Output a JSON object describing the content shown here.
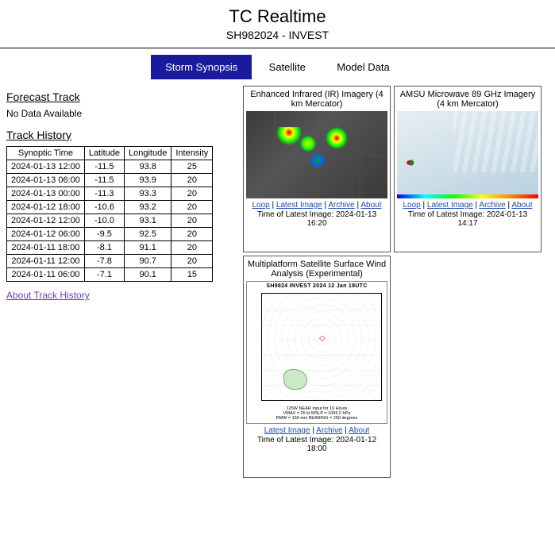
{
  "header": {
    "title": "TC Realtime",
    "subtitle": "SH982024 - INVEST"
  },
  "tabs": [
    {
      "label": "Storm Synopsis",
      "active": true
    },
    {
      "label": "Satellite",
      "active": false
    },
    {
      "label": "Model Data",
      "active": false
    }
  ],
  "forecast": {
    "heading": "Forecast Track",
    "nodata": "No Data Available"
  },
  "trackHistory": {
    "heading": "Track History",
    "columns": [
      "Synoptic Time",
      "Latitude",
      "Longitude",
      "Intensity"
    ],
    "rows": [
      [
        "2024-01-13 12:00",
        "-11.5",
        "93.8",
        "25"
      ],
      [
        "2024-01-13 06:00",
        "-11.5",
        "93.9",
        "20"
      ],
      [
        "2024-01-13 00:00",
        "-11.3",
        "93.3",
        "20"
      ],
      [
        "2024-01-12 18:00",
        "-10.6",
        "93.2",
        "20"
      ],
      [
        "2024-01-12 12:00",
        "-10.0",
        "93.1",
        "20"
      ],
      [
        "2024-01-12 06:00",
        "-9.5",
        "92.5",
        "20"
      ],
      [
        "2024-01-11 18:00",
        "-8.1",
        "91.1",
        "20"
      ],
      [
        "2024-01-11 12:00",
        "-7.8",
        "90.7",
        "20"
      ],
      [
        "2024-01-11 06:00",
        "-7.1",
        "90.1",
        "15"
      ]
    ],
    "aboutLink": "About Track History"
  },
  "panels": {
    "ir": {
      "title": "Enhanced Infrared (IR) Imagery (4 km Mercator)",
      "links": {
        "loop": "Loop",
        "latest": "Latest Image",
        "archive": "Archive",
        "about": "About"
      },
      "timestampLabel": "Time of Latest Image: 2024-01-13 16:20"
    },
    "amsu": {
      "title": "AMSU Microwave 89 GHz Imagery (4 km Mercator)",
      "links": {
        "loop": "Loop",
        "latest": "Latest Image",
        "archive": "Archive",
        "about": "About"
      },
      "timestampLabel": "Time of Latest Image: 2024-01-13 14:17"
    },
    "wind": {
      "title": "Multiplatform Satellite Surface Wind Analysis (Experimental)",
      "plotHeader": "SH9824    INVEST    2024 12 Jan 18UTC",
      "plotFooter1": "125W  NEAR Input for 16 Hours",
      "plotFooter2": "VMAX = 25 kt MSLP = 1006.2 hPa",
      "plotFooter3": "RMW = 159 nmi BEARING = 250 degrees",
      "links": {
        "latest": "Latest Image",
        "archive": "Archive",
        "about": "About"
      },
      "timestampLabel": "Time of Latest Image: 2024-01-12 18:00"
    }
  },
  "colors": {
    "tabActiveBg": "#1a1a9e",
    "tabActiveFg": "#ffffff",
    "link": "#1a4db3",
    "visitedLink": "#6a3fc2",
    "border": "#000000"
  }
}
